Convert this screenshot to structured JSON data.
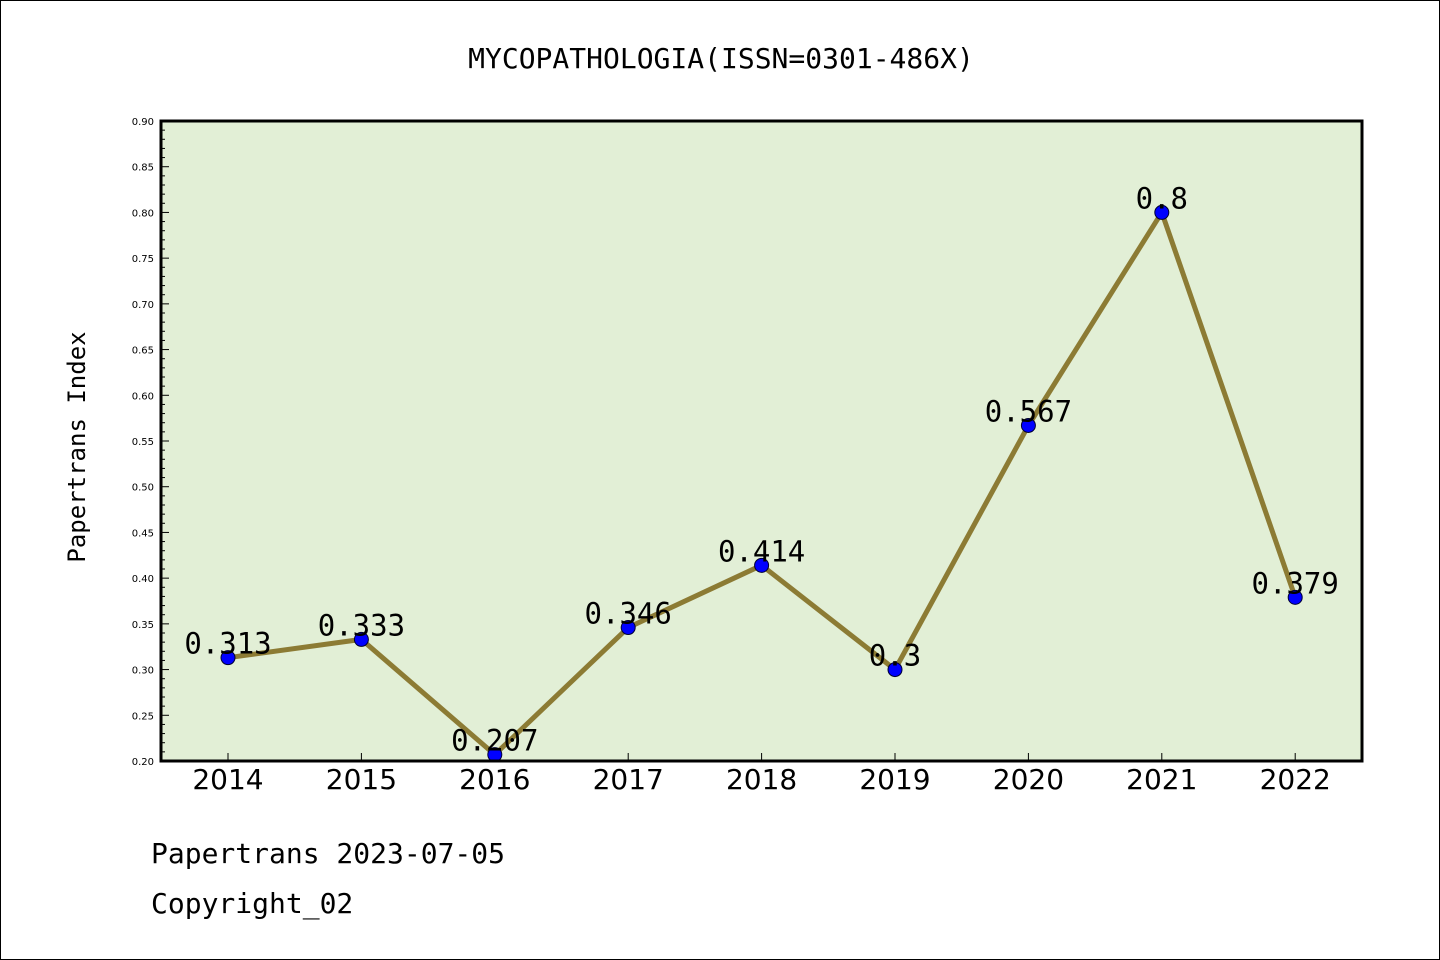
{
  "chart_data": {
    "type": "line",
    "title": "MYCOPATHOLOGIA(ISSN=0301-486X)",
    "xlabel": "",
    "ylabel": "Papertrans Index",
    "categories": [
      "2014",
      "2015",
      "2016",
      "2017",
      "2018",
      "2019",
      "2020",
      "2021",
      "2022"
    ],
    "values": [
      0.313,
      0.333,
      0.207,
      0.346,
      0.414,
      0.3,
      0.567,
      0.8,
      0.379
    ],
    "data_labels": [
      "0.313",
      "0.333",
      "0.207",
      "0.346",
      "0.414",
      "0.3",
      "0.567",
      "0.8",
      "0.379"
    ],
    "ylim": [
      0.2,
      0.9
    ],
    "yticks": [
      "0.20",
      "0.25",
      "0.30",
      "0.35",
      "0.40",
      "0.45",
      "0.50",
      "0.55",
      "0.60",
      "0.65",
      "0.70",
      "0.75",
      "0.80",
      "0.85",
      "0.90"
    ],
    "grid": false,
    "legend": "none",
    "colors": {
      "plot_background": "#e2efd6",
      "line": "#8c7b34",
      "marker": "#0000ff",
      "frame": "#000000"
    }
  },
  "footer": {
    "date_line": "Papertrans 2023-07-05",
    "copyright": "Copyright_02"
  }
}
